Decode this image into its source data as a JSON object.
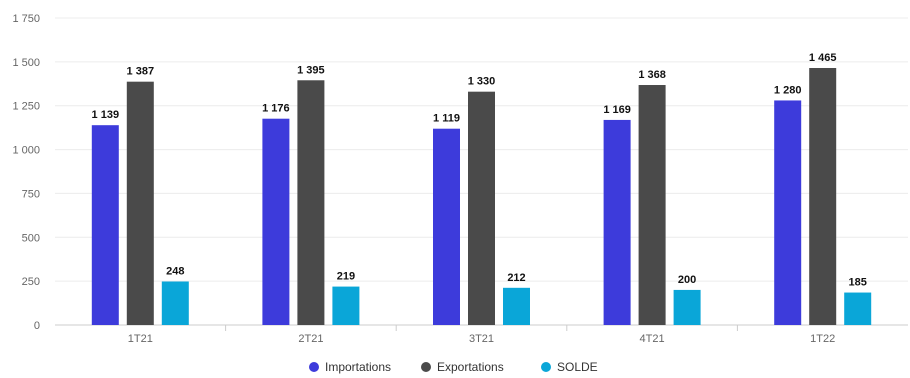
{
  "chart_data": {
    "type": "bar",
    "categories": [
      "1T21",
      "2T21",
      "3T21",
      "4T21",
      "1T22"
    ],
    "series": [
      {
        "name": "Importations",
        "values": [
          1139,
          1176,
          1119,
          1169,
          1280
        ],
        "color": "#3d3bdb"
      },
      {
        "name": "Exportations",
        "values": [
          1387,
          1395,
          1330,
          1368,
          1465
        ],
        "color": "#4a4a4a"
      },
      {
        "name": "SOLDE",
        "values": [
          248,
          219,
          212,
          200,
          185
        ],
        "color": "#0aa6d8"
      }
    ],
    "data_labels": [
      [
        "1 139",
        "1 387",
        "248"
      ],
      [
        "1 176",
        "1 395",
        "219"
      ],
      [
        "1 119",
        "1 330",
        "212"
      ],
      [
        "1 169",
        "1 368",
        "200"
      ],
      [
        "1 280",
        "1 465",
        "185"
      ]
    ],
    "ylim": [
      0,
      1750
    ],
    "yticks": [
      0,
      250,
      500,
      750,
      1000,
      1250,
      1500,
      1750
    ],
    "ytick_labels": [
      "0",
      "250",
      "500",
      "750",
      "1 000",
      "1 250",
      "1 500",
      "1 750"
    ],
    "grid": true,
    "legend_position": "bottom"
  }
}
